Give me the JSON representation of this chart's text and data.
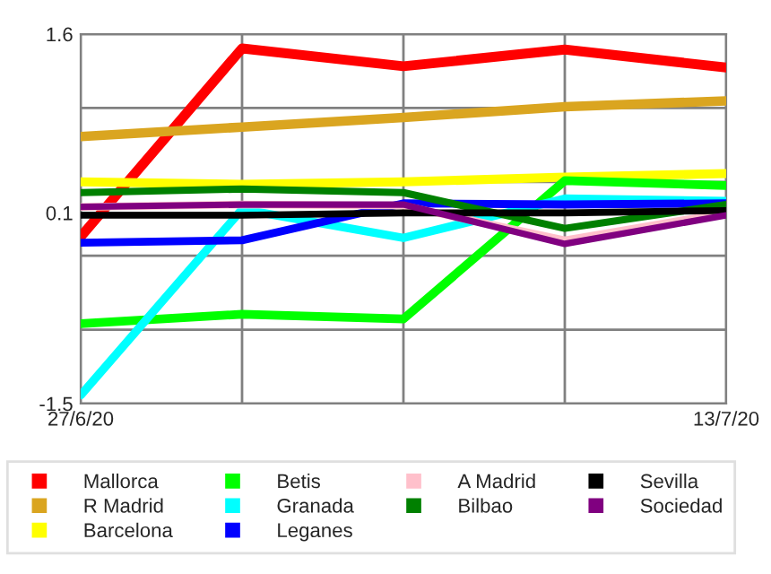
{
  "chart_data": {
    "type": "line",
    "categories": [
      "27/6/20",
      null,
      null,
      null,
      "13/7/20"
    ],
    "series": [
      {
        "name": "Mallorca",
        "color": "#ff0000",
        "values": [
          -0.1,
          1.48,
          1.33,
          1.47,
          1.32
        ]
      },
      {
        "name": "R Madrid",
        "color": "#daa520",
        "values": [
          0.74,
          0.82,
          0.9,
          0.99,
          1.04
        ]
      },
      {
        "name": "Barcelona",
        "color": "#ffff00",
        "values": [
          0.36,
          0.34,
          0.36,
          0.4,
          0.43
        ]
      },
      {
        "name": "Betis",
        "color": "#00ff00",
        "values": [
          -0.83,
          -0.75,
          -0.79,
          0.37,
          0.33
        ]
      },
      {
        "name": "Granada",
        "color": "#00ffff",
        "values": [
          -1.43,
          0.13,
          -0.11,
          0.22,
          0.2
        ]
      },
      {
        "name": "Leganes",
        "color": "#0000ff",
        "values": [
          -0.15,
          -0.13,
          0.18,
          0.17,
          0.18
        ]
      },
      {
        "name": "A Madrid",
        "color": "#ffc0cb",
        "values": [
          0.15,
          0.17,
          0.16,
          -0.13,
          0.1
        ]
      },
      {
        "name": "Bilbao",
        "color": "#008000",
        "values": [
          0.27,
          0.3,
          0.27,
          -0.03,
          0.17
        ]
      },
      {
        "name": "Sevilla",
        "color": "#000000",
        "values": [
          0.08,
          0.08,
          0.1,
          0.1,
          0.12
        ]
      },
      {
        "name": "Sociedad",
        "color": "#800080",
        "values": [
          0.15,
          0.17,
          0.17,
          -0.16,
          0.08
        ]
      }
    ],
    "ylim": [
      -1.5,
      1.6
    ],
    "yticks": [
      -1.5,
      {
        "value": -0.88,
        "label": null
      },
      {
        "value": -0.26,
        "label": null
      },
      0.1,
      {
        "value": 0.36,
        "label": null
      },
      {
        "value": 0.98,
        "label": null
      },
      1.6
    ],
    "grid": true,
    "legend": "bottom",
    "marker": "none",
    "line_style": "solid"
  }
}
